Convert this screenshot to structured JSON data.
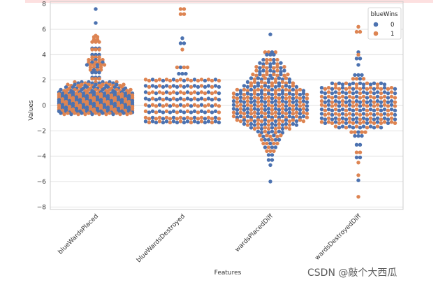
{
  "colors": {
    "class0": "#4c72b0",
    "class1": "#dd8452",
    "grid": "#d9d9d9",
    "axes": "#cccccc"
  },
  "watermark": "CSDN @敲个大西瓜",
  "chart_data": {
    "type": "swarm",
    "xlabel": "Features",
    "ylabel": "Values",
    "ylim": [
      -8.2,
      8.2
    ],
    "yticks": [
      8,
      6,
      4,
      2,
      0,
      -2,
      -4,
      -6,
      -8
    ],
    "grid": true,
    "legend": {
      "title": "blueWins",
      "position": "top-right",
      "entries": [
        "0",
        "1"
      ]
    },
    "categories": [
      "blueWardsPlaced",
      "blueWardsDestroyed",
      "wardsPlacedDiff",
      "wardsDestroyedDiff"
    ],
    "points": [
      [
        {
          "y": 7.6,
          "c": 0,
          "n": 1
        },
        {
          "y": 6.5,
          "c": 0,
          "n": 1
        },
        {
          "y": 5.5,
          "c": 1,
          "n": 1
        },
        {
          "y": 5.4,
          "c": 1,
          "n": 2
        },
        {
          "y": 5.2,
          "c": 1,
          "n": 2
        },
        {
          "y": 5.0,
          "c": 1,
          "n": 3
        },
        {
          "y": 4.5,
          "c": 0,
          "n": 3
        },
        {
          "y": 4.4,
          "c": 1,
          "n": 3
        },
        {
          "y": 4.0,
          "c": 0,
          "n": 3
        },
        {
          "y": 3.8,
          "c": 1,
          "n": 3
        },
        {
          "y": 3.6,
          "c": 1,
          "n": 5
        },
        {
          "y": 3.4,
          "c": 1,
          "n": 5
        },
        {
          "y": 3.2,
          "c": 1,
          "n": 6
        },
        {
          "y": 3.0,
          "c": 1,
          "n": 4
        },
        {
          "y": 2.8,
          "c": 1,
          "n": 4
        },
        {
          "y": 2.6,
          "c": 0,
          "n": 3
        },
        {
          "y": 2.2,
          "c": 0,
          "n": 3
        },
        {
          "y": 2.1,
          "c": 1,
          "n": 3
        },
        {
          "y": 1.8,
          "c": 0,
          "n": 13
        },
        {
          "y": 1.6,
          "c": 1,
          "n": 17
        },
        {
          "y": 1.4,
          "c": 0,
          "n": 18
        },
        {
          "y": 1.2,
          "c": 1,
          "n": 21
        },
        {
          "y": 1.0,
          "c": 0,
          "n": 22
        },
        {
          "y": 0.85,
          "c": 1,
          "n": 22
        },
        {
          "y": 0.7,
          "c": 0,
          "n": 22
        },
        {
          "y": 0.55,
          "c": 1,
          "n": 22
        },
        {
          "y": 0.4,
          "c": 0,
          "n": 22
        },
        {
          "y": 0.25,
          "c": 1,
          "n": 22
        },
        {
          "y": 0.1,
          "c": 0,
          "n": 22
        },
        {
          "y": -0.05,
          "c": 1,
          "n": 22
        },
        {
          "y": -0.2,
          "c": 0,
          "n": 22
        },
        {
          "y": -0.35,
          "c": 1,
          "n": 22
        },
        {
          "y": -0.5,
          "c": 0,
          "n": 22
        },
        {
          "y": -0.65,
          "c": 1,
          "n": 21
        }
      ],
      [
        {
          "y": 7.6,
          "c": 1,
          "n": 2
        },
        {
          "y": 7.2,
          "c": 1,
          "n": 2
        },
        {
          "y": 5.3,
          "c": 0,
          "n": 1
        },
        {
          "y": 4.9,
          "c": 0,
          "n": 2
        },
        {
          "y": 4.4,
          "c": 1,
          "n": 1
        },
        {
          "y": 3.0,
          "c": 1,
          "n": 4
        },
        {
          "y": 2.5,
          "c": 0,
          "n": 3
        },
        {
          "y": 2.0,
          "c": 1,
          "n": 22
        },
        {
          "y": 1.5,
          "c": 0,
          "n": 22
        },
        {
          "y": 1.0,
          "c": 1,
          "n": 22
        },
        {
          "y": 0.5,
          "c": 0,
          "n": 22
        },
        {
          "y": 0.0,
          "c": 1,
          "n": 22
        },
        {
          "y": -0.5,
          "c": 0,
          "n": 22
        },
        {
          "y": -1.0,
          "c": 1,
          "n": 22
        },
        {
          "y": -1.3,
          "c": 0,
          "n": 22
        }
      ],
      [
        {
          "y": 5.6,
          "c": 0,
          "n": 1
        },
        {
          "y": 4.2,
          "c": 1,
          "n": 4
        },
        {
          "y": 4.0,
          "c": 0,
          "n": 3
        },
        {
          "y": 3.6,
          "c": 1,
          "n": 5
        },
        {
          "y": 3.3,
          "c": 0,
          "n": 7
        },
        {
          "y": 3.0,
          "c": 1,
          "n": 9
        },
        {
          "y": 2.7,
          "c": 0,
          "n": 9
        },
        {
          "y": 2.4,
          "c": 1,
          "n": 11
        },
        {
          "y": 2.1,
          "c": 0,
          "n": 12
        },
        {
          "y": 1.8,
          "c": 1,
          "n": 14
        },
        {
          "y": 1.5,
          "c": 0,
          "n": 16
        },
        {
          "y": 1.2,
          "c": 1,
          "n": 20
        },
        {
          "y": 0.9,
          "c": 0,
          "n": 22
        },
        {
          "y": 0.6,
          "c": 1,
          "n": 22
        },
        {
          "y": 0.3,
          "c": 0,
          "n": 22
        },
        {
          "y": 0.0,
          "c": 1,
          "n": 22
        },
        {
          "y": -0.3,
          "c": 0,
          "n": 22
        },
        {
          "y": -0.6,
          "c": 1,
          "n": 22
        },
        {
          "y": -0.9,
          "c": 0,
          "n": 22
        },
        {
          "y": -1.2,
          "c": 1,
          "n": 20
        },
        {
          "y": -1.5,
          "c": 0,
          "n": 16
        },
        {
          "y": -1.8,
          "c": 1,
          "n": 12
        },
        {
          "y": -2.1,
          "c": 0,
          "n": 8
        },
        {
          "y": -2.4,
          "c": 1,
          "n": 7
        },
        {
          "y": -2.7,
          "c": 0,
          "n": 6
        },
        {
          "y": -3.0,
          "c": 1,
          "n": 5
        },
        {
          "y": -3.3,
          "c": 0,
          "n": 4
        },
        {
          "y": -3.6,
          "c": 1,
          "n": 3
        },
        {
          "y": -3.9,
          "c": 0,
          "n": 2
        },
        {
          "y": -4.3,
          "c": 0,
          "n": 2
        },
        {
          "y": -4.7,
          "c": 0,
          "n": 1
        },
        {
          "y": -6.0,
          "c": 0,
          "n": 1
        }
      ],
      [
        {
          "y": 6.2,
          "c": 1,
          "n": 1
        },
        {
          "y": 5.8,
          "c": 1,
          "n": 2
        },
        {
          "y": 4.2,
          "c": 0,
          "n": 1
        },
        {
          "y": 4.0,
          "c": 1,
          "n": 1
        },
        {
          "y": 3.7,
          "c": 0,
          "n": 2
        },
        {
          "y": 3.2,
          "c": 0,
          "n": 1
        },
        {
          "y": 2.4,
          "c": 0,
          "n": 3
        },
        {
          "y": 2.1,
          "c": 1,
          "n": 4
        },
        {
          "y": 1.7,
          "c": 0,
          "n": 16
        },
        {
          "y": 1.35,
          "c": 1,
          "n": 22
        },
        {
          "y": 1.0,
          "c": 0,
          "n": 22
        },
        {
          "y": 0.65,
          "c": 1,
          "n": 22
        },
        {
          "y": 0.3,
          "c": 0,
          "n": 22
        },
        {
          "y": 0.0,
          "c": 1,
          "n": 22
        },
        {
          "y": -0.35,
          "c": 0,
          "n": 22
        },
        {
          "y": -0.7,
          "c": 1,
          "n": 22
        },
        {
          "y": -1.05,
          "c": 0,
          "n": 22
        },
        {
          "y": -1.35,
          "c": 1,
          "n": 22
        },
        {
          "y": -1.7,
          "c": 0,
          "n": 14
        },
        {
          "y": -2.1,
          "c": 1,
          "n": 5
        },
        {
          "y": -2.4,
          "c": 0,
          "n": 3
        },
        {
          "y": -3.1,
          "c": 0,
          "n": 2
        },
        {
          "y": -3.7,
          "c": 1,
          "n": 2
        },
        {
          "y": -4.1,
          "c": 0,
          "n": 2
        },
        {
          "y": -4.5,
          "c": 1,
          "n": 1
        },
        {
          "y": -5.5,
          "c": 1,
          "n": 1
        },
        {
          "y": -5.9,
          "c": 0,
          "n": 1
        },
        {
          "y": -7.2,
          "c": 1,
          "n": 1
        }
      ]
    ]
  }
}
